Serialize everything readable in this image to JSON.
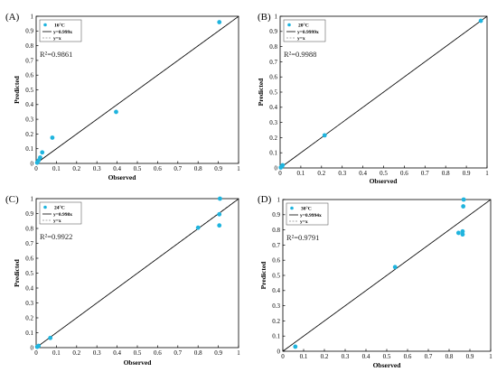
{
  "chart_data": [
    {
      "type": "scatter",
      "panel": "(A)",
      "temp_label": "16°C",
      "fit_label": "y=0.999x",
      "ref_label": "y=x",
      "r2_text": "R²=0.9861",
      "xlabel": "Observed",
      "ylabel": "Predicted",
      "xlim": [
        0,
        1
      ],
      "ylim": [
        0,
        1
      ],
      "ticks": [
        "0",
        "0.1",
        "0.2",
        "0.3",
        "0.4",
        "0.5",
        "0.6",
        "0.7",
        "0.8",
        "0.9",
        "1"
      ],
      "slope": 0.999,
      "marker_color": "#1fb4de",
      "points": [
        {
          "x": 0.005,
          "y": 0.005
        },
        {
          "x": 0.012,
          "y": 0.02
        },
        {
          "x": 0.02,
          "y": 0.04
        },
        {
          "x": 0.03,
          "y": 0.075
        },
        {
          "x": 0.08,
          "y": 0.175
        },
        {
          "x": 0.395,
          "y": 0.35
        },
        {
          "x": 0.905,
          "y": 0.96
        }
      ]
    },
    {
      "type": "scatter",
      "panel": "(B)",
      "temp_label": "20°C",
      "fit_label": "y=0.9999x",
      "ref_label": "y=x",
      "r2_text": "R²=0.9988",
      "xlabel": "Observed",
      "ylabel": "Predicted",
      "xlim": [
        0,
        1
      ],
      "ylim": [
        0,
        1
      ],
      "ticks": [
        "0",
        "0.1",
        "0.2",
        "0.3",
        "0.4",
        "0.5",
        "0.6",
        "0.7",
        "0.8",
        "0.9",
        "1"
      ],
      "slope": 0.9999,
      "marker_color": "#1fb4de",
      "points": [
        {
          "x": 0.003,
          "y": 0.003
        },
        {
          "x": 0.008,
          "y": 0.01
        },
        {
          "x": 0.012,
          "y": 0.018
        },
        {
          "x": 0.215,
          "y": 0.215
        },
        {
          "x": 0.97,
          "y": 0.97
        }
      ]
    },
    {
      "type": "scatter",
      "panel": "(C)",
      "temp_label": "24°C",
      "fit_label": "y=0.998x",
      "ref_label": "y=x",
      "r2_text": "R²=0.9922",
      "xlabel": "Observed",
      "ylabel": "Predicted",
      "xlim": [
        0,
        1
      ],
      "ylim": [
        0,
        1
      ],
      "ticks": [
        "0",
        "0.1",
        "0.2",
        "0.3",
        "0.4",
        "0.5",
        "0.6",
        "0.7",
        "0.8",
        "0.9",
        "1"
      ],
      "slope": 0.998,
      "marker_color": "#1fb4de",
      "points": [
        {
          "x": 0.005,
          "y": 0.005
        },
        {
          "x": 0.012,
          "y": 0.012
        },
        {
          "x": 0.07,
          "y": 0.065
        },
        {
          "x": 0.8,
          "y": 0.805
        },
        {
          "x": 0.905,
          "y": 0.895
        },
        {
          "x": 0.905,
          "y": 0.82
        },
        {
          "x": 0.908,
          "y": 1.0
        }
      ]
    },
    {
      "type": "scatter",
      "panel": "(D)",
      "temp_label": "30°C",
      "fit_label": "y=0.9994x",
      "ref_label": "y=x",
      "r2_text": "R²=0.9791",
      "xlabel": "Observed",
      "ylabel": "Predicted",
      "xlim": [
        0,
        1
      ],
      "ylim": [
        0,
        1
      ],
      "ticks": [
        "0",
        "0.1",
        "0.2",
        "0.3",
        "0.4",
        "0.5",
        "0.6",
        "0.7",
        "0.8",
        "0.9",
        "1"
      ],
      "slope": 0.9994,
      "marker_color": "#1fb4de",
      "points": [
        {
          "x": 0.06,
          "y": 0.03
        },
        {
          "x": 0.54,
          "y": 0.555
        },
        {
          "x": 0.845,
          "y": 0.78
        },
        {
          "x": 0.865,
          "y": 0.77
        },
        {
          "x": 0.865,
          "y": 0.79
        },
        {
          "x": 0.868,
          "y": 0.955
        },
        {
          "x": 0.87,
          "y": 1.0
        }
      ]
    }
  ]
}
